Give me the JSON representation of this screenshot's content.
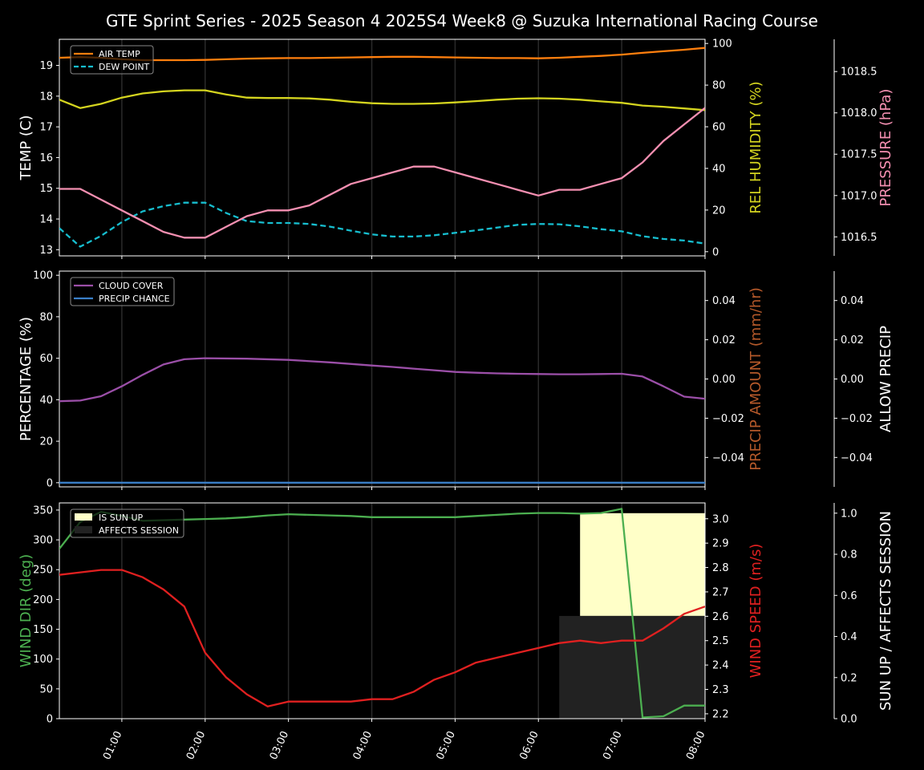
{
  "title": "GTE Sprint Series - 2025 Season 4 2025S4 Week8 @ Suzuka International Racing Course",
  "colors": {
    "air_temp": "#ff7f0e",
    "dew_point": "#17becf",
    "humidity": "#d4d41f",
    "pressure": "#f48fb1",
    "cloud_cover": "#9b4fa8",
    "precip_chance": "#3a7fc8",
    "wind_dir": "#4caf50",
    "wind_speed": "#e02020",
    "sun_up": "#ffffc8",
    "affects_session": "#222222"
  },
  "x_ticks": [
    "01:00",
    "02:00",
    "03:00",
    "04:00",
    "05:00",
    "06:00",
    "07:00",
    "08:00"
  ],
  "chart_data": [
    {
      "type": "line",
      "panel": "temperature",
      "x_hours": [
        0.25,
        0.5,
        0.75,
        1.0,
        1.25,
        1.5,
        1.75,
        2.0,
        2.25,
        2.5,
        2.75,
        3.0,
        3.25,
        3.5,
        3.75,
        4.0,
        4.25,
        4.5,
        4.75,
        5.0,
        5.25,
        5.5,
        5.75,
        6.0,
        6.25,
        6.5,
        6.75,
        7.0,
        7.25,
        7.5,
        7.75,
        8.0
      ],
      "left_axis": {
        "label": "TEMP (C)",
        "ticks": [
          "13",
          "14",
          "15",
          "16",
          "17",
          "18",
          "19"
        ],
        "ylim": [
          12.8,
          19.85
        ]
      },
      "right_axis_1": {
        "label": "REL HUMIDITY (%)",
        "ticks": [
          "0",
          "20",
          "40",
          "60",
          "80",
          "100"
        ],
        "ylim": [
          -2,
          102
        ]
      },
      "right_axis_2": {
        "label": "PRESSURE (hPa)",
        "ticks": [
          "1016.5",
          "1017.0",
          "1017.5",
          "1018.0",
          "1018.5"
        ],
        "ylim": [
          1016.27,
          1018.89
        ]
      },
      "series": [
        {
          "name": "AIR TEMP",
          "axis": "left",
          "style": "solid",
          "values": [
            19.25,
            19.27,
            19.25,
            19.2,
            19.17,
            19.17,
            19.17,
            19.18,
            19.2,
            19.22,
            19.23,
            19.24,
            19.24,
            19.25,
            19.26,
            19.27,
            19.28,
            19.28,
            19.27,
            19.26,
            19.25,
            19.24,
            19.24,
            19.23,
            19.25,
            19.28,
            19.31,
            19.35,
            19.41,
            19.46,
            19.51,
            19.57
          ]
        },
        {
          "name": "DEW POINT",
          "axis": "left",
          "style": "dashed",
          "values": [
            13.7,
            13.1,
            13.45,
            13.9,
            14.25,
            14.42,
            14.53,
            14.53,
            14.2,
            13.93,
            13.87,
            13.87,
            13.84,
            13.75,
            13.62,
            13.5,
            13.43,
            13.43,
            13.47,
            13.55,
            13.63,
            13.72,
            13.81,
            13.84,
            13.83,
            13.76,
            13.67,
            13.6,
            13.44,
            13.35,
            13.3,
            13.2
          ]
        },
        {
          "name": "REL HUMIDITY",
          "axis": "right1",
          "style": "solid",
          "values": [
            73,
            69,
            71,
            74,
            76,
            77,
            77.5,
            77.5,
            75.5,
            74,
            73.8,
            73.8,
            73.6,
            73,
            72,
            71.3,
            71,
            71,
            71.2,
            71.7,
            72.3,
            73,
            73.5,
            73.7,
            73.5,
            73,
            72.2,
            71.5,
            70.2,
            69.6,
            68.8,
            68
          ]
        },
        {
          "name": "PRESSURE",
          "axis": "right2",
          "style": "solid",
          "values": [
            1017.08,
            1017.08,
            1016.95,
            1016.82,
            1016.69,
            1016.56,
            1016.49,
            1016.49,
            1016.62,
            1016.75,
            1016.82,
            1016.82,
            1016.88,
            1017.01,
            1017.14,
            1017.21,
            1017.28,
            1017.35,
            1017.35,
            1017.28,
            1017.21,
            1017.14,
            1017.07,
            1017.0,
            1017.07,
            1017.07,
            1017.14,
            1017.21,
            1017.4,
            1017.66,
            1017.86,
            1018.06
          ]
        }
      ]
    },
    {
      "type": "line",
      "panel": "precipitation",
      "x_hours": [
        0.0,
        0.25,
        0.5,
        0.75,
        1.0,
        1.25,
        1.5,
        1.75,
        2.0,
        2.5,
        3.0,
        3.5,
        4.0,
        4.25,
        4.5,
        4.75,
        5.0,
        5.25,
        5.5,
        5.75,
        6.0,
        6.25,
        6.5,
        6.75,
        7.0,
        7.25,
        7.5,
        7.75,
        8.0
      ],
      "left_axis": {
        "label": "PERCENTAGE (%)",
        "ticks": [
          "0",
          "20",
          "40",
          "60",
          "80",
          "100"
        ],
        "ylim": [
          -2,
          102
        ]
      },
      "right_axis_1": {
        "label": "PRECIP AMOUNT (mm/hr)",
        "ticks": [
          "−0.04",
          "−0.02",
          "0.00",
          "0.02",
          "0.04"
        ],
        "ylim": [
          -0.055,
          0.055
        ]
      },
      "right_axis_2": {
        "label": "ALLOW PRECIP",
        "ticks": [
          "−0.04",
          "−0.02",
          "0.00",
          "0.02",
          "0.04"
        ],
        "ylim": [
          -0.055,
          0.055
        ]
      },
      "series": [
        {
          "name": "CLOUD COVER",
          "axis": "left",
          "style": "solid",
          "values": [
            39.2,
            39.3,
            39.6,
            41.7,
            46.5,
            52,
            57,
            59.5,
            60,
            59.8,
            59.2,
            58,
            56.5,
            55.8,
            55,
            54.2,
            53.4,
            53,
            52.7,
            52.5,
            52.4,
            52.3,
            52.3,
            52.4,
            52.5,
            51.2,
            46.5,
            41.5,
            40.5
          ]
        },
        {
          "name": "PRECIP CHANCE",
          "axis": "left",
          "style": "solid",
          "values": [
            0,
            0,
            0,
            0,
            0,
            0,
            0,
            0,
            0,
            0,
            0,
            0,
            0,
            0,
            0,
            0,
            0,
            0,
            0,
            0,
            0,
            0,
            0,
            0,
            0,
            0,
            0,
            0,
            0
          ]
        }
      ]
    },
    {
      "type": "line",
      "panel": "wind",
      "x_hours": [
        0.0,
        0.25,
        0.5,
        0.75,
        1.0,
        1.25,
        1.5,
        1.75,
        2.0,
        2.25,
        2.5,
        2.75,
        3.0,
        3.25,
        3.5,
        3.75,
        4.0,
        4.25,
        4.5,
        4.75,
        5.0,
        5.25,
        5.5,
        5.75,
        6.0,
        6.25,
        6.5,
        6.75,
        7.0,
        7.25,
        7.5,
        7.75,
        8.0
      ],
      "left_axis": {
        "label": "WIND DIR (deg)",
        "ticks": [
          "0",
          "50",
          "100",
          "150",
          "200",
          "250",
          "300",
          "350"
        ],
        "ylim": [
          0,
          362
        ]
      },
      "right_axis_1": {
        "label": "WIND SPEED (m/s)",
        "ticks": [
          "2.2",
          "2.3",
          "2.4",
          "2.5",
          "2.6",
          "2.7",
          "2.8",
          "2.9",
          "3.0"
        ],
        "ylim": [
          2.18,
          3.065
        ]
      },
      "right_axis_2": {
        "label": "SUN UP / AFFECTS SESSION",
        "ticks": [
          "0.0",
          "0.2",
          "0.4",
          "0.6",
          "0.8",
          "1.0"
        ],
        "ylim": [
          0,
          1.05
        ]
      },
      "series": [
        {
          "name": "WIND DIR",
          "axis": "left",
          "style": "solid",
          "values": [
            270,
            285,
            330,
            347,
            340,
            332,
            333,
            334,
            335,
            336,
            338,
            341,
            343,
            342,
            341,
            340,
            338,
            338,
            338,
            338,
            338,
            340,
            342,
            344,
            345,
            345,
            344,
            345,
            352,
            2,
            4,
            22,
            22
          ]
        },
        {
          "name": "WIND SPEED",
          "axis": "right1",
          "style": "solid",
          "values": [
            3.03,
            2.77,
            2.78,
            2.79,
            2.79,
            2.76,
            2.71,
            2.64,
            2.45,
            2.35,
            2.28,
            2.23,
            2.25,
            2.25,
            2.25,
            2.25,
            2.26,
            2.26,
            2.29,
            2.34,
            2.37,
            2.41,
            2.43,
            2.45,
            2.47,
            2.49,
            2.5,
            2.49,
            2.5,
            2.5,
            2.55,
            2.61,
            2.64
          ]
        }
      ],
      "bands": [
        {
          "name": "IS SUN UP",
          "x_start": 6.5,
          "x_end": 8.0,
          "y_from": 0.5,
          "y_to": 1.0
        },
        {
          "name": "AFFECTS SESSION",
          "x_start": 6.25,
          "x_end": 8.0,
          "y_from": 0.0,
          "y_to": 0.5
        }
      ]
    }
  ]
}
